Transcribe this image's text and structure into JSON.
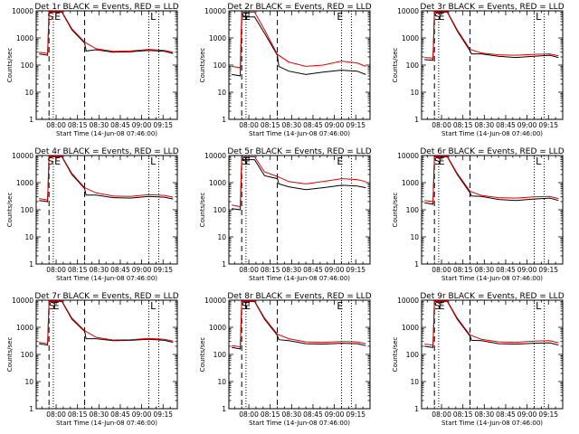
{
  "colors": {
    "events": "#000000",
    "lld": "#e00000"
  },
  "chart_data": [
    {
      "type": "line",
      "title": "Det 1r BLACK = Events, RED = LLD",
      "xlabel": "Start Time (14-Jun-08 07:46:00)",
      "ylabel": "Counts/sec",
      "xticks": [
        "08:00",
        "08:15",
        "08:30",
        "08:45",
        "09:00",
        "09:15"
      ],
      "yticks": [
        "1",
        "10",
        "100",
        "1000",
        "10000"
      ],
      "ylim": [
        1,
        10000
      ],
      "yscale": "log",
      "markers": [
        {
          "label": "S",
          "x": "07:56"
        },
        {
          "label": "E",
          "x": "08:01"
        },
        {
          "label": "L",
          "x": "09:08"
        }
      ],
      "series": [
        {
          "name": "BLACK = Events",
          "color": "events",
          "x": [
            "07:48",
            "07:54",
            "07:55",
            "07:57",
            "08:04",
            "08:11",
            "08:20",
            "08:21",
            "08:28",
            "08:40",
            "08:52",
            "09:05",
            "09:16",
            "09:22"
          ],
          "y": [
            260,
            230,
            9000,
            9000,
            9000,
            2000,
            650,
            330,
            370,
            300,
            310,
            350,
            320,
            270
          ]
        },
        {
          "name": "RED = LLD",
          "color": "lld",
          "x": [
            "07:48",
            "07:54",
            "07:55",
            "07:57",
            "08:04",
            "08:11",
            "08:20",
            "08:28",
            "08:40",
            "08:52",
            "09:05",
            "09:16",
            "09:22"
          ],
          "y": [
            300,
            270,
            9500,
            9500,
            9500,
            2200,
            700,
            400,
            320,
            330,
            380,
            350,
            300
          ]
        }
      ]
    },
    {
      "type": "line",
      "title": "Det 2r BLACK = Events, RED = LLD",
      "xlabel": "Start Time (14-Jun-08 07:46:00)",
      "ylabel": "Counts/sec",
      "xticks": [
        "08:00",
        "08:15",
        "08:30",
        "08:45",
        "09:00",
        "09:15"
      ],
      "yticks": [
        "1",
        "10",
        "100",
        "1000",
        "10000"
      ],
      "ylim": [
        1,
        10000
      ],
      "yscale": "log",
      "markers": [
        {
          "label": "S",
          "x": "07:57"
        },
        {
          "label": "E",
          "x": "07:59"
        },
        {
          "label": "E",
          "x": "09:04"
        }
      ],
      "series": [
        {
          "name": "BLACK = Events",
          "color": "events",
          "x": [
            "07:48",
            "07:54",
            "07:55",
            "07:57",
            "08:04",
            "08:11",
            "08:20",
            "08:21",
            "08:28",
            "08:40",
            "08:52",
            "09:05",
            "09:16",
            "09:22"
          ],
          "y": [
            45,
            40,
            6000,
            6000,
            6000,
            1500,
            230,
            90,
            60,
            45,
            55,
            65,
            60,
            45
          ]
        },
        {
          "name": "RED = LLD",
          "color": "lld",
          "x": [
            "07:48",
            "07:54",
            "07:55",
            "07:57",
            "08:04",
            "08:11",
            "08:20",
            "08:28",
            "08:40",
            "08:52",
            "09:05",
            "09:16",
            "09:22"
          ],
          "y": [
            90,
            80,
            9000,
            9000,
            9000,
            2000,
            250,
            130,
            90,
            100,
            140,
            120,
            90
          ]
        }
      ]
    },
    {
      "type": "line",
      "title": "Det 3r BLACK = Events, RED = LLD",
      "xlabel": "Start Time (14-Jun-08 07:46:00)",
      "ylabel": "Counts/sec",
      "xticks": [
        "08:00",
        "08:15",
        "08:30",
        "08:45",
        "09:00",
        "09:15"
      ],
      "yticks": [
        "1",
        "10",
        "100",
        "1000",
        "10000"
      ],
      "ylim": [
        1,
        10000
      ],
      "yscale": "log",
      "markers": [
        {
          "label": "S",
          "x": "07:57"
        },
        {
          "label": "E",
          "x": "08:00"
        },
        {
          "label": "L",
          "x": "09:08"
        }
      ],
      "series": [
        {
          "name": "BLACK = Events",
          "color": "events",
          "x": [
            "07:48",
            "07:54",
            "07:55",
            "07:57",
            "08:04",
            "08:11",
            "08:20",
            "08:21",
            "08:28",
            "08:40",
            "08:52",
            "09:05",
            "09:16",
            "09:22"
          ],
          "y": [
            160,
            150,
            9000,
            9000,
            9000,
            1800,
            330,
            260,
            260,
            210,
            190,
            210,
            230,
            190
          ]
        },
        {
          "name": "RED = LLD",
          "color": "lld",
          "x": [
            "07:48",
            "07:54",
            "07:55",
            "07:57",
            "08:04",
            "08:11",
            "08:20",
            "08:28",
            "08:40",
            "08:52",
            "09:05",
            "09:16",
            "09:22"
          ],
          "y": [
            190,
            180,
            9500,
            9500,
            9500,
            2000,
            380,
            280,
            240,
            230,
            250,
            260,
            220
          ]
        }
      ]
    },
    {
      "type": "line",
      "title": "Det 4r BLACK = Events, RED = LLD",
      "xlabel": "Start Time (14-Jun-08 07:46:00)",
      "ylabel": "Counts/sec",
      "xticks": [
        "08:00",
        "08:15",
        "08:30",
        "08:45",
        "09:00",
        "09:15"
      ],
      "yticks": [
        "1",
        "10",
        "100",
        "1000",
        "10000"
      ],
      "ylim": [
        1,
        10000
      ],
      "yscale": "log",
      "markers": [
        {
          "label": "S",
          "x": "07:56"
        },
        {
          "label": "E",
          "x": "08:01"
        },
        {
          "label": "L",
          "x": "09:08"
        }
      ],
      "series": [
        {
          "name": "BLACK = Events",
          "color": "events",
          "x": [
            "07:48",
            "07:54",
            "07:55",
            "07:57",
            "08:04",
            "08:11",
            "08:20",
            "08:21",
            "08:28",
            "08:40",
            "08:52",
            "09:05",
            "09:16",
            "09:22"
          ],
          "y": [
            220,
            200,
            9000,
            9000,
            9000,
            2000,
            600,
            350,
            350,
            280,
            270,
            310,
            290,
            250
          ]
        },
        {
          "name": "RED = LLD",
          "color": "lld",
          "x": [
            "07:48",
            "07:54",
            "07:55",
            "07:57",
            "08:04",
            "08:11",
            "08:20",
            "08:28",
            "08:40",
            "08:52",
            "09:05",
            "09:16",
            "09:22"
          ],
          "y": [
            260,
            230,
            9500,
            9500,
            9500,
            2200,
            650,
            420,
            320,
            310,
            360,
            340,
            290
          ]
        }
      ]
    },
    {
      "type": "line",
      "title": "Det 5r BLACK = Events, RED = LLD",
      "xlabel": "Start Time (14-Jun-08 07:46:00)",
      "ylabel": "Counts/sec",
      "xticks": [
        "08:00",
        "08:15",
        "08:30",
        "08:45",
        "09:00",
        "09:15"
      ],
      "yticks": [
        "1",
        "10",
        "100",
        "1000",
        "10000"
      ],
      "ylim": [
        1,
        10000
      ],
      "yscale": "log",
      "markers": [
        {
          "label": "S",
          "x": "07:57"
        },
        {
          "label": "E",
          "x": "07:59"
        },
        {
          "label": "E",
          "x": "09:04"
        }
      ],
      "series": [
        {
          "name": "BLACK = Events",
          "color": "events",
          "x": [
            "07:48",
            "07:54",
            "07:55",
            "07:57",
            "08:04",
            "08:11",
            "08:20",
            "08:21",
            "08:28",
            "08:40",
            "08:52",
            "09:05",
            "09:16",
            "09:22"
          ],
          "y": [
            110,
            100,
            7000,
            7000,
            7000,
            1800,
            1400,
            900,
            700,
            550,
            650,
            800,
            750,
            650
          ]
        },
        {
          "name": "RED = LLD",
          "color": "lld",
          "x": [
            "07:48",
            "07:54",
            "07:55",
            "07:57",
            "08:04",
            "08:11",
            "08:20",
            "08:28",
            "08:40",
            "08:52",
            "09:05",
            "09:16",
            "09:22"
          ],
          "y": [
            150,
            130,
            9000,
            9000,
            9000,
            2500,
            1700,
            1100,
            900,
            1100,
            1400,
            1300,
            1100
          ]
        }
      ]
    },
    {
      "type": "line",
      "title": "Det 6r BLACK = Events, RED = LLD",
      "xlabel": "Start Time (14-Jun-08 07:46:00)",
      "ylabel": "Counts/sec",
      "xticks": [
        "08:00",
        "08:15",
        "08:30",
        "08:45",
        "09:00",
        "09:15"
      ],
      "yticks": [
        "1",
        "10",
        "100",
        "1000",
        "10000"
      ],
      "ylim": [
        1,
        10000
      ],
      "yscale": "log",
      "markers": [
        {
          "label": "S",
          "x": "07:57"
        },
        {
          "label": "E",
          "x": "08:00"
        },
        {
          "label": "L",
          "x": "09:08"
        }
      ],
      "series": [
        {
          "name": "BLACK = Events",
          "color": "events",
          "x": [
            "07:48",
            "07:54",
            "07:55",
            "07:57",
            "08:04",
            "08:11",
            "08:20",
            "08:21",
            "08:28",
            "08:40",
            "08:52",
            "09:05",
            "09:16",
            "09:22"
          ],
          "y": [
            180,
            160,
            9000,
            9000,
            9000,
            2000,
            420,
            320,
            310,
            240,
            220,
            250,
            270,
            220
          ]
        },
        {
          "name": "RED = LLD",
          "color": "lld",
          "x": [
            "07:48",
            "07:54",
            "07:55",
            "07:57",
            "08:04",
            "08:11",
            "08:20",
            "08:28",
            "08:40",
            "08:52",
            "09:05",
            "09:16",
            "09:22"
          ],
          "y": [
            220,
            200,
            9500,
            9500,
            9500,
            2200,
            480,
            340,
            280,
            270,
            300,
            310,
            260
          ]
        }
      ]
    },
    {
      "type": "line",
      "title": "Det 7r BLACK = Events, RED = LLD",
      "xlabel": "Start Time (14-Jun-08 07:46:00)",
      "ylabel": "Counts/sec",
      "xticks": [
        "08:00",
        "08:15",
        "08:30",
        "08:45",
        "09:00",
        "09:15"
      ],
      "yticks": [
        "1",
        "10",
        "100",
        "1000",
        "10000"
      ],
      "ylim": [
        1,
        10000
      ],
      "yscale": "log",
      "markers": [
        {
          "label": "S",
          "x": "07:57"
        },
        {
          "label": "E",
          "x": "08:00"
        },
        {
          "label": "L",
          "x": "09:08"
        }
      ],
      "series": [
        {
          "name": "BLACK = Events",
          "color": "events",
          "x": [
            "07:48",
            "07:54",
            "07:55",
            "07:57",
            "08:04",
            "08:11",
            "08:20",
            "08:21",
            "08:28",
            "08:40",
            "08:52",
            "09:05",
            "09:16",
            "09:22"
          ],
          "y": [
            250,
            220,
            9000,
            9000,
            9000,
            2000,
            700,
            380,
            380,
            320,
            330,
            360,
            330,
            280
          ]
        },
        {
          "name": "RED = LLD",
          "color": "lld",
          "x": [
            "07:48",
            "07:54",
            "07:55",
            "07:57",
            "08:04",
            "08:11",
            "08:20",
            "08:28",
            "08:40",
            "08:52",
            "09:05",
            "09:16",
            "09:22"
          ],
          "y": [
            280,
            250,
            9500,
            9500,
            9500,
            2200,
            750,
            430,
            340,
            350,
            390,
            360,
            310
          ]
        }
      ]
    },
    {
      "type": "line",
      "title": "Det 8r BLACK = Events, RED = LLD",
      "xlabel": "Start Time (14-Jun-08 07:46:00)",
      "ylabel": "Counts/sec",
      "xticks": [
        "08:00",
        "08:15",
        "08:30",
        "08:45",
        "09:00",
        "09:15"
      ],
      "yticks": [
        "1",
        "10",
        "100",
        "1000",
        "10000"
      ],
      "ylim": [
        1,
        10000
      ],
      "yscale": "log",
      "markers": [
        {
          "label": "S",
          "x": "07:57"
        },
        {
          "label": "E",
          "x": "07:59"
        },
        {
          "label": "E",
          "x": "09:04"
        }
      ],
      "series": [
        {
          "name": "BLACK = Events",
          "color": "events",
          "x": [
            "07:48",
            "07:54",
            "07:55",
            "07:57",
            "08:04",
            "08:11",
            "08:20",
            "08:21",
            "08:28",
            "08:40",
            "08:52",
            "09:05",
            "09:16",
            "09:22"
          ],
          "y": [
            180,
            160,
            9000,
            9000,
            9000,
            2000,
            500,
            350,
            320,
            250,
            240,
            260,
            250,
            210
          ]
        },
        {
          "name": "RED = LLD",
          "color": "lld",
          "x": [
            "07:48",
            "07:54",
            "07:55",
            "07:57",
            "08:04",
            "08:11",
            "08:20",
            "08:28",
            "08:40",
            "08:52",
            "09:05",
            "09:16",
            "09:22"
          ],
          "y": [
            210,
            190,
            9500,
            9500,
            9500,
            2200,
            560,
            380,
            290,
            280,
            300,
            290,
            250
          ]
        }
      ]
    },
    {
      "type": "line",
      "title": "Det 9r BLACK = Events, RED = LLD",
      "xlabel": "Start Time (14-Jun-08 07:46:00)",
      "ylabel": "Counts/sec",
      "xticks": [
        "08:00",
        "08:15",
        "08:30",
        "08:45",
        "09:00",
        "09:15"
      ],
      "yticks": [
        "1",
        "10",
        "100",
        "1000",
        "10000"
      ],
      "ylim": [
        1,
        10000
      ],
      "yscale": "log",
      "markers": [
        {
          "label": "S",
          "x": "07:57"
        },
        {
          "label": "E",
          "x": "08:00"
        },
        {
          "label": "L",
          "x": "09:08"
        }
      ],
      "series": [
        {
          "name": "BLACK = Events",
          "color": "events",
          "x": [
            "07:48",
            "07:54",
            "07:55",
            "07:57",
            "08:04",
            "08:11",
            "08:20",
            "08:21",
            "08:28",
            "08:40",
            "08:52",
            "09:05",
            "09:16",
            "09:22"
          ],
          "y": [
            200,
            180,
            9000,
            9000,
            9000,
            2000,
            470,
            330,
            320,
            250,
            240,
            260,
            270,
            220
          ]
        },
        {
          "name": "RED = LLD",
          "color": "lld",
          "x": [
            "07:48",
            "07:54",
            "07:55",
            "07:57",
            "08:04",
            "08:11",
            "08:20",
            "08:28",
            "08:40",
            "08:52",
            "09:05",
            "09:16",
            "09:22"
          ],
          "y": [
            240,
            220,
            9500,
            9500,
            9500,
            2200,
            520,
            360,
            290,
            280,
            310,
            320,
            270
          ]
        }
      ]
    }
  ]
}
